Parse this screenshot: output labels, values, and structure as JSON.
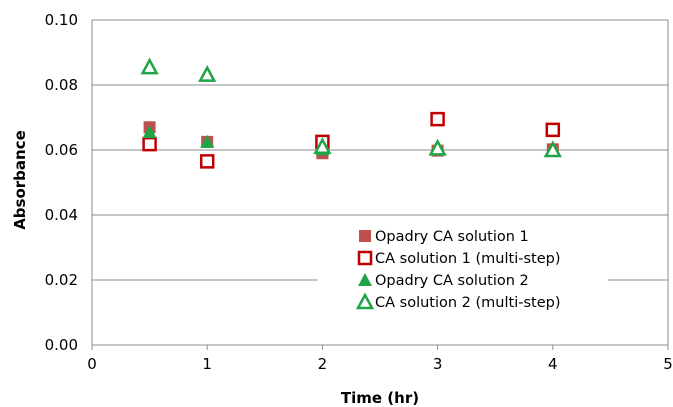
{
  "chart_data": {
    "type": "scatter",
    "title": "",
    "xlabel": "Time (hr)",
    "ylabel": "Absorbance",
    "xlim": [
      0,
      5
    ],
    "ylim": [
      0,
      0.1
    ],
    "x_ticks": [
      "0",
      "1",
      "2",
      "3",
      "4",
      "5"
    ],
    "y_ticks": [
      "0.00",
      "0.02",
      "0.04",
      "0.06",
      "0.08",
      "0.10"
    ],
    "grid": "horizontal",
    "legend_position": "bottom-right",
    "series": [
      {
        "name": "Opadry CA solution 1",
        "marker": "filled-square",
        "color": "#C0504D",
        "points": [
          {
            "x": 0.5,
            "y": 0.067
          },
          {
            "x": 1,
            "y": 0.0625
          },
          {
            "x": 2,
            "y": 0.059
          },
          {
            "x": 3,
            "y": 0.0598
          },
          {
            "x": 4,
            "y": 0.0602
          }
        ]
      },
      {
        "name": "CA solution 1 (multi-step)",
        "marker": "open-square",
        "color": "#C00000",
        "points": [
          {
            "x": 0.5,
            "y": 0.0618
          },
          {
            "x": 1,
            "y": 0.0565
          },
          {
            "x": 2,
            "y": 0.0625
          },
          {
            "x": 3,
            "y": 0.0695
          },
          {
            "x": 4,
            "y": 0.0662
          }
        ]
      },
      {
        "name": "Opadry CA solution 2",
        "marker": "filled-triangle",
        "color": "#21A347",
        "points": [
          {
            "x": 0.5,
            "y": 0.0655
          },
          {
            "x": 1,
            "y": 0.0625
          },
          {
            "x": 2,
            "y": 0.0602
          },
          {
            "x": 3,
            "y": 0.0602
          },
          {
            "x": 4,
            "y": 0.0598
          }
        ]
      },
      {
        "name": "CA solution 2 (multi-step)",
        "marker": "open-triangle",
        "color": "#21A347",
        "points": [
          {
            "x": 0.5,
            "y": 0.0855
          },
          {
            "x": 1,
            "y": 0.0832
          },
          {
            "x": 2,
            "y": 0.061
          },
          {
            "x": 3,
            "y": 0.0605
          },
          {
            "x": 4,
            "y": 0.06
          }
        ]
      }
    ]
  }
}
